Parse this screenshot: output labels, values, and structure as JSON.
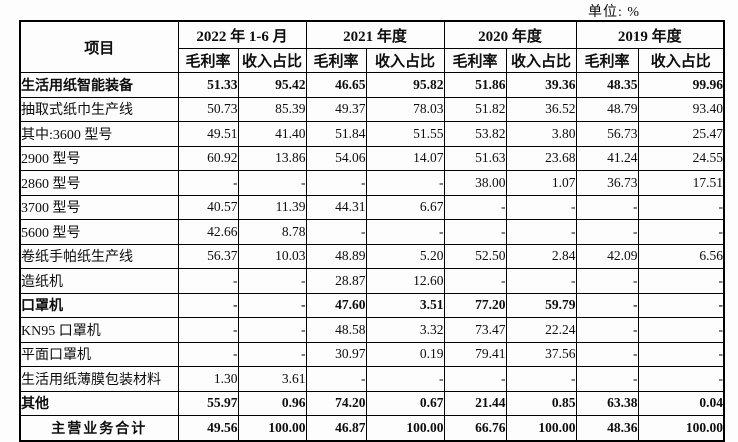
{
  "unit_label": "单位: %",
  "table": {
    "item_header": "项目",
    "period_headers": [
      "2022 年 1-6 月",
      "2021 年度",
      "2020 年度",
      "2019 年度"
    ],
    "metric_headers": [
      "毛利率",
      "收入占比"
    ],
    "rows": [
      {
        "label": "生活用纸智能装备",
        "bold": true,
        "indent": 0,
        "values": [
          "51.33",
          "95.42",
          "46.65",
          "95.82",
          "51.86",
          "39.36",
          "48.35",
          "99.96"
        ]
      },
      {
        "label": "抽取式纸巾生产线",
        "bold": false,
        "indent": 1,
        "values": [
          "50.73",
          "85.39",
          "49.37",
          "78.03",
          "51.82",
          "36.52",
          "48.79",
          "93.40"
        ]
      },
      {
        "label": "其中:3600 型号",
        "bold": false,
        "indent": 1,
        "values": [
          "49.51",
          "41.40",
          "51.84",
          "51.55",
          "53.82",
          "3.80",
          "56.73",
          "25.47"
        ]
      },
      {
        "label": "2900 型号",
        "bold": false,
        "indent": 2,
        "values": [
          "60.92",
          "13.86",
          "54.06",
          "14.07",
          "51.63",
          "23.68",
          "41.24",
          "24.55"
        ]
      },
      {
        "label": "2860 型号",
        "bold": false,
        "indent": 2,
        "values": [
          "-",
          "-",
          "-",
          "-",
          "38.00",
          "1.07",
          "36.73",
          "17.51"
        ]
      },
      {
        "label": "3700 型号",
        "bold": false,
        "indent": 2,
        "values": [
          "40.57",
          "11.39",
          "44.31",
          "6.67",
          "-",
          "-",
          "-",
          "-"
        ]
      },
      {
        "label": "5600 型号",
        "bold": false,
        "indent": 2,
        "values": [
          "42.66",
          "8.78",
          "-",
          "-",
          "-",
          "-",
          "-",
          "-"
        ]
      },
      {
        "label": "卷纸手帕纸生产线",
        "bold": false,
        "indent": 1,
        "values": [
          "56.37",
          "10.03",
          "48.89",
          "5.20",
          "52.50",
          "2.84",
          "42.09",
          "6.56"
        ]
      },
      {
        "label": "造纸机",
        "bold": false,
        "indent": 1,
        "values": [
          "-",
          "-",
          "28.87",
          "12.60",
          "-",
          "-",
          "-",
          "-"
        ]
      },
      {
        "label": "口罩机",
        "bold": true,
        "indent": 0,
        "values": [
          "-",
          "-",
          "47.60",
          "3.51",
          "77.20",
          "59.79",
          "-",
          "-"
        ]
      },
      {
        "label": "KN95 口罩机",
        "bold": false,
        "indent": 1,
        "values": [
          "-",
          "-",
          "48.58",
          "3.32",
          "73.47",
          "22.24",
          "-",
          "-"
        ]
      },
      {
        "label": "平面口罩机",
        "bold": false,
        "indent": 1,
        "values": [
          "-",
          "-",
          "30.97",
          "0.19",
          "79.41",
          "37.56",
          "-",
          "-"
        ]
      },
      {
        "label": "生活用纸薄膜包装材料",
        "bold": false,
        "indent": 0,
        "values": [
          "1.30",
          "3.61",
          "-",
          "-",
          "-",
          "-",
          "-",
          "-"
        ]
      },
      {
        "label": "其他",
        "bold": true,
        "indent": 0,
        "values": [
          "55.97",
          "0.96",
          "74.20",
          "0.67",
          "21.44",
          "0.85",
          "63.38",
          "0.04"
        ]
      },
      {
        "label": "主营业务合计",
        "bold": true,
        "indent": 0,
        "center": true,
        "values": [
          "49.56",
          "100.00",
          "46.87",
          "100.00",
          "66.76",
          "100.00",
          "48.36",
          "100.00"
        ]
      }
    ]
  }
}
